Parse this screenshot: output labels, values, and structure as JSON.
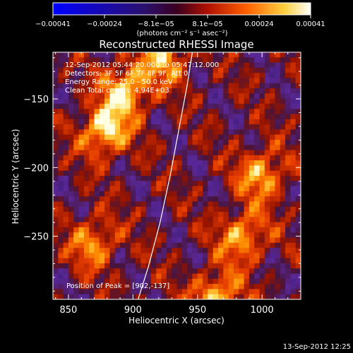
{
  "chart_data": {
    "type": "heatmap",
    "title": "Reconstructed RHESSI Image",
    "xlabel": "Heliocentric X (arcsec)",
    "ylabel": "Heliocentric Y (arcsec)",
    "xlim": [
      838,
      1030
    ],
    "ylim": [
      -296,
      -116
    ],
    "xticks": [
      850,
      900,
      950,
      1000
    ],
    "yticks": [
      -150,
      -200,
      -250
    ],
    "xtick_labels": [
      "850",
      "900",
      "950",
      "1000"
    ],
    "ytick_labels": [
      "−150",
      "−200",
      "−250"
    ],
    "colorbar": {
      "range": [
        -0.00041,
        0.00041
      ],
      "tick_labels": [
        "−0.00041",
        "−0.00024",
        "−8.1e−05",
        "8.1e−05",
        "0.00024",
        "0.00041"
      ],
      "units": "(photons cm⁻² s⁻¹ asec⁻²)",
      "colormap": [
        "#0000ff",
        "#3a1a8c",
        "#6e2a9a",
        "#8a2b2b",
        "#d23000",
        "#ff7a00",
        "#ffd23a",
        "#ffffff"
      ]
    },
    "annotations": [
      "12-Sep-2012 05:44:20.000 to 05:47:12.000",
      "Detectors: 3F 5F 6F 7F 8F 9F, Att 0",
      "Energy Range: 25.0 - 50.0 keV",
      "Clean     Total counts: 4.94E+03"
    ],
    "peak_label": "Position of Peak = [902,-137]",
    "peak_position": [
      902,
      -137
    ],
    "bright_sources": [
      {
        "x": 878,
        "y": -173,
        "intensity": 0.95
      },
      {
        "x": 895,
        "y": -143,
        "intensity": 0.9
      },
      {
        "x": 925,
        "y": -120,
        "intensity": 0.7
      },
      {
        "x": 965,
        "y": -295,
        "intensity": 0.85
      },
      {
        "x": 1000,
        "y": -205,
        "intensity": 0.75
      },
      {
        "x": 985,
        "y": -250,
        "intensity": 0.75
      },
      {
        "x": 870,
        "y": -255,
        "intensity": 0.65
      }
    ],
    "limb_curve": [
      [
        904,
        -296
      ],
      [
        912,
        -272
      ],
      [
        921,
        -240
      ],
      [
        929,
        -205
      ],
      [
        936,
        -170
      ],
      [
        942,
        -140
      ],
      [
        946,
        -116
      ]
    ],
    "footer": "13-Sep-2012 12:25"
  }
}
